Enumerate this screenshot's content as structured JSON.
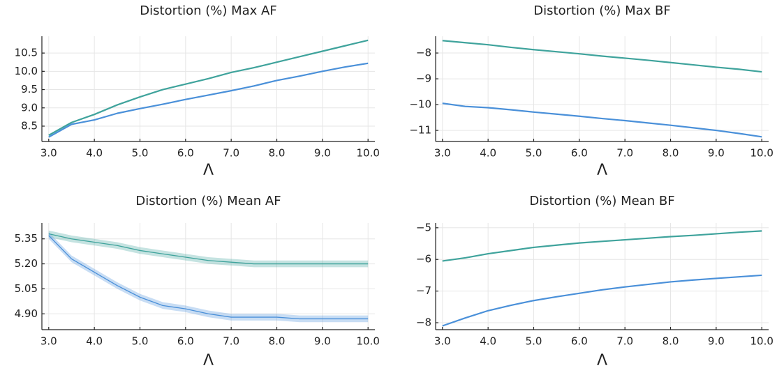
{
  "chart_data": [
    {
      "type": "line",
      "title": "Distortion (%) Max AF",
      "xlabel": "Λ",
      "grid": true,
      "x": [
        3.0,
        3.5,
        4.0,
        4.5,
        5.0,
        5.5,
        6.0,
        6.5,
        7.0,
        7.5,
        8.0,
        8.5,
        9.0,
        9.5,
        10.0
      ],
      "xlim": [
        2.85,
        10.15
      ],
      "xticks": [
        {
          "value": 3,
          "label": "3.0"
        },
        {
          "value": 4,
          "label": "4.0"
        },
        {
          "value": 5,
          "label": "5.0"
        },
        {
          "value": 6,
          "label": "6.0"
        },
        {
          "value": 7,
          "label": "7.0"
        },
        {
          "value": 8,
          "label": "8.0"
        },
        {
          "value": 9,
          "label": "9.0"
        },
        {
          "value": 10,
          "label": "10.0"
        }
      ],
      "ylim": [
        8.08,
        10.96
      ],
      "yticks": [
        8.5,
        {
          "value": 9,
          "label": "9.0"
        },
        9.5,
        {
          "value": 10,
          "label": "10.0"
        },
        10.5
      ],
      "series": [
        {
          "color": "#3fa39c",
          "values": [
            8.25,
            8.6,
            8.82,
            9.08,
            9.3,
            9.5,
            9.65,
            9.8,
            9.97,
            10.1,
            10.25,
            10.4,
            10.55,
            10.7,
            10.85
          ]
        },
        {
          "color": "#4a90d9",
          "values": [
            8.2,
            8.55,
            8.67,
            8.85,
            8.98,
            9.1,
            9.23,
            9.35,
            9.47,
            9.6,
            9.75,
            9.87,
            10.0,
            10.12,
            10.22
          ]
        }
      ]
    },
    {
      "type": "line",
      "title": "Distortion (%) Max BF",
      "xlabel": "Λ",
      "grid": true,
      "x": [
        3.0,
        3.5,
        4.0,
        4.5,
        5.0,
        5.5,
        6.0,
        6.5,
        7.0,
        7.5,
        8.0,
        8.5,
        9.0,
        9.5,
        10.0
      ],
      "xlim": [
        2.85,
        10.15
      ],
      "xticks": [
        {
          "value": 3,
          "label": "3.0"
        },
        {
          "value": 4,
          "label": "4.0"
        },
        {
          "value": 5,
          "label": "5.0"
        },
        {
          "value": 6,
          "label": "6.0"
        },
        {
          "value": 7,
          "label": "7.0"
        },
        {
          "value": 8,
          "label": "8.0"
        },
        {
          "value": 9,
          "label": "9.0"
        },
        {
          "value": 10,
          "label": "10.0"
        }
      ],
      "ylim": [
        -11.43,
        -7.35
      ],
      "yticks": [
        {
          "value": -11,
          "label": "−11"
        },
        {
          "value": -10,
          "label": "−10"
        },
        {
          "value": -9,
          "label": "−9"
        },
        {
          "value": -8,
          "label": "−8"
        }
      ],
      "series": [
        {
          "color": "#3fa39c",
          "values": [
            -7.52,
            -7.6,
            -7.68,
            -7.78,
            -7.87,
            -7.95,
            -8.03,
            -8.12,
            -8.2,
            -8.28,
            -8.37,
            -8.46,
            -8.55,
            -8.63,
            -8.73
          ]
        },
        {
          "color": "#4a90d9",
          "values": [
            -9.95,
            -10.07,
            -10.12,
            -10.2,
            -10.29,
            -10.37,
            -10.45,
            -10.54,
            -10.62,
            -10.71,
            -10.8,
            -10.9,
            -11.0,
            -11.12,
            -11.25
          ]
        }
      ]
    },
    {
      "type": "line",
      "title": "Distortion (%) Mean AF",
      "xlabel": "Λ",
      "grid": true,
      "x": [
        3.0,
        3.5,
        4.0,
        4.5,
        5.0,
        5.5,
        6.0,
        6.5,
        7.0,
        7.5,
        8.0,
        8.5,
        9.0,
        9.5,
        10.0
      ],
      "xlim": [
        2.85,
        10.15
      ],
      "xticks": [
        {
          "value": 3,
          "label": "3.0"
        },
        {
          "value": 4,
          "label": "4.0"
        },
        {
          "value": 5,
          "label": "5.0"
        },
        {
          "value": 6,
          "label": "6.0"
        },
        {
          "value": 7,
          "label": "7.0"
        },
        {
          "value": 8,
          "label": "8.0"
        },
        {
          "value": 9,
          "label": "9.0"
        },
        {
          "value": 10,
          "label": "10.0"
        }
      ],
      "ylim": [
        4.805,
        5.445
      ],
      "yticks": [
        {
          "value": 4.9,
          "label": "4.90"
        },
        5.05,
        {
          "value": 5.2,
          "label": "5.20"
        },
        5.35
      ],
      "series": [
        {
          "color": "#3fa39c",
          "values": [
            5.38,
            5.35,
            5.33,
            5.31,
            5.28,
            5.26,
            5.24,
            5.22,
            5.21,
            5.2,
            5.2,
            5.2,
            5.2,
            5.2,
            5.2
          ],
          "lower": [
            5.36,
            5.33,
            5.31,
            5.29,
            5.26,
            5.24,
            5.22,
            5.2,
            5.19,
            5.18,
            5.18,
            5.18,
            5.18,
            5.18,
            5.18
          ],
          "upper": [
            5.4,
            5.37,
            5.35,
            5.33,
            5.3,
            5.28,
            5.26,
            5.24,
            5.23,
            5.22,
            5.22,
            5.22,
            5.22,
            5.22,
            5.22
          ]
        },
        {
          "color": "#4a90d9",
          "values": [
            5.37,
            5.23,
            5.15,
            5.07,
            5.0,
            4.95,
            4.93,
            4.9,
            4.88,
            4.88,
            4.88,
            4.87,
            4.87,
            4.87,
            4.87
          ],
          "lower": [
            5.35,
            5.21,
            5.13,
            5.05,
            4.98,
            4.93,
            4.91,
            4.88,
            4.86,
            4.86,
            4.86,
            4.85,
            4.85,
            4.85,
            4.85
          ],
          "upper": [
            5.39,
            5.25,
            5.17,
            5.09,
            5.02,
            4.97,
            4.95,
            4.92,
            4.9,
            4.9,
            4.9,
            4.89,
            4.89,
            4.89,
            4.89
          ]
        }
      ]
    },
    {
      "type": "line",
      "title": "Distortion (%) Mean BF",
      "xlabel": "Λ",
      "grid": true,
      "x": [
        3.0,
        3.5,
        4.0,
        4.5,
        5.0,
        5.5,
        6.0,
        6.5,
        7.0,
        7.5,
        8.0,
        8.5,
        9.0,
        9.5,
        10.0
      ],
      "xlim": [
        2.85,
        10.15
      ],
      "xticks": [
        {
          "value": 3,
          "label": "3.0"
        },
        {
          "value": 4,
          "label": "4.0"
        },
        {
          "value": 5,
          "label": "5.0"
        },
        {
          "value": 6,
          "label": "6.0"
        },
        {
          "value": 7,
          "label": "7.0"
        },
        {
          "value": 8,
          "label": "8.0"
        },
        {
          "value": 9,
          "label": "9.0"
        },
        {
          "value": 10,
          "label": "10.0"
        }
      ],
      "ylim": [
        -8.22,
        -4.85
      ],
      "yticks": [
        {
          "value": -8,
          "label": "−8"
        },
        {
          "value": -7,
          "label": "−7"
        },
        {
          "value": -6,
          "label": "−6"
        },
        {
          "value": -5,
          "label": "−5"
        }
      ],
      "series": [
        {
          "color": "#3fa39c",
          "values": [
            -6.05,
            -5.95,
            -5.82,
            -5.72,
            -5.62,
            -5.55,
            -5.48,
            -5.43,
            -5.38,
            -5.33,
            -5.28,
            -5.24,
            -5.19,
            -5.14,
            -5.1
          ]
        },
        {
          "color": "#4a90d9",
          "values": [
            -8.1,
            -7.85,
            -7.62,
            -7.45,
            -7.3,
            -7.18,
            -7.07,
            -6.96,
            -6.87,
            -6.79,
            -6.71,
            -6.65,
            -6.6,
            -6.55,
            -6.5
          ]
        }
      ]
    }
  ]
}
